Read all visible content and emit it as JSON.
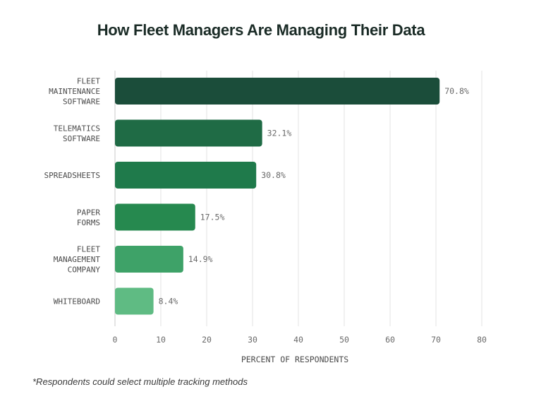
{
  "colors": {
    "title": "#1a2b26",
    "grid": "#e3e3e3",
    "axis_line": "#c8c8c8",
    "label_text": "#4a4a4a",
    "value_text": "#6a6a6a",
    "footnote": "#3a3a3a"
  },
  "chart_data": {
    "type": "bar",
    "orientation": "horizontal",
    "title": "How Fleet Managers Are Managing Their Data",
    "xlabel": "PERCENT OF RESPONDENTS",
    "ylabel": "",
    "xlim": [
      0,
      80
    ],
    "xticks": [
      "0",
      "10",
      "20",
      "30",
      "40",
      "50",
      "60",
      "70",
      "80"
    ],
    "grid": true,
    "categories": [
      [
        "FLEET",
        "MAINTENANCE",
        "SOFTWARE"
      ],
      [
        "TELEMATICS",
        "SOFTWARE"
      ],
      [
        "SPREADSHEETS"
      ],
      [
        "PAPER",
        "FORMS"
      ],
      [
        "FLEET",
        "MANAGEMENT",
        "COMPANY"
      ],
      [
        "WHITEBOARD"
      ]
    ],
    "values": [
      70.8,
      32.1,
      30.8,
      17.5,
      14.9,
      8.4
    ],
    "value_labels": [
      "70.8%",
      "32.1%",
      "30.8%",
      "17.5%",
      "14.9%",
      "8.4%"
    ],
    "bar_colors": [
      "#1b4d3a",
      "#1f6b45",
      "#1f7a4b",
      "#26894f",
      "#3ea268",
      "#5fbb83"
    ]
  },
  "footnote": "*Respondents could select multiple tracking methods"
}
